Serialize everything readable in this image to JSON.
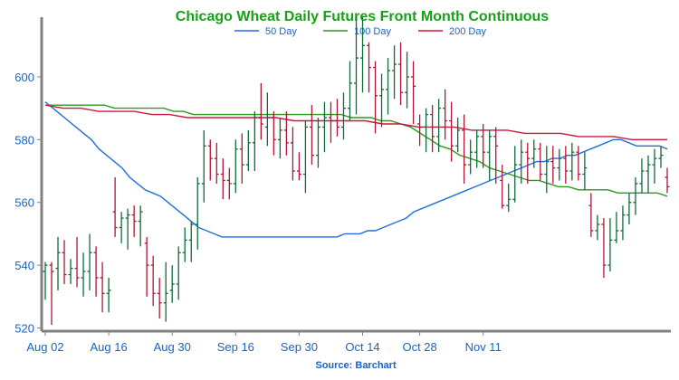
{
  "chart_data": {
    "type": "ohlc",
    "title": "Chicago Wheat Daily Futures Front Month Continuous",
    "source": "Source: Barchart",
    "x_ticks": [
      "Aug 02",
      "Aug 16",
      "Aug 30",
      "Sep 16",
      "Sep 30",
      "Oct 14",
      "Oct 28",
      "Nov 11"
    ],
    "y_ticks": [
      520,
      540,
      560,
      580,
      600
    ],
    "ylim": [
      519,
      619
    ],
    "grid": false,
    "legend_position": "top-center",
    "legend": [
      {
        "name": "50 Day",
        "color": "#1f6fe0"
      },
      {
        "name": "100 Day",
        "color": "#2a9a1c"
      },
      {
        "name": "200 Day",
        "color": "#c8193c"
      }
    ],
    "colors": {
      "up": "#0f6b3a",
      "down": "#b01535",
      "axis": "#808080",
      "tick": "#1a63c7",
      "title": "#19a019",
      "source": "#1a63c7"
    },
    "candles": [
      [
        538,
        541,
        529,
        540
      ],
      [
        540,
        541,
        521,
        538
      ],
      [
        539,
        549,
        532,
        544
      ],
      [
        544,
        548,
        534,
        537
      ],
      [
        537,
        542,
        534,
        539
      ],
      [
        539,
        549,
        533,
        536
      ],
      [
        536,
        544,
        530,
        538
      ],
      [
        538,
        550,
        532,
        544
      ],
      [
        544,
        546,
        530,
        536
      ],
      [
        536,
        541,
        525,
        531
      ],
      [
        531,
        536,
        525,
        532
      ],
      [
        557,
        568,
        549,
        552
      ],
      [
        552,
        557,
        547,
        555
      ],
      [
        555,
        558,
        545,
        556
      ],
      [
        556,
        559,
        549,
        554
      ],
      [
        554,
        559,
        546,
        557
      ],
      [
        547,
        549,
        530,
        540
      ],
      [
        540,
        543,
        527,
        531
      ],
      [
        531,
        536,
        523,
        528
      ],
      [
        528,
        541,
        522,
        531
      ],
      [
        532,
        540,
        528,
        534
      ],
      [
        534,
        546,
        529,
        544
      ],
      [
        544,
        552,
        541,
        548
      ],
      [
        548,
        554,
        541,
        553
      ],
      [
        553,
        568,
        545,
        566
      ],
      [
        566,
        583,
        560,
        578
      ],
      [
        578,
        580,
        567,
        574
      ],
      [
        574,
        579,
        566,
        569
      ],
      [
        569,
        574,
        561,
        567
      ],
      [
        567,
        571,
        561,
        566
      ],
      [
        566,
        580,
        563,
        577
      ],
      [
        577,
        582,
        566,
        572
      ],
      [
        572,
        583,
        570,
        579
      ],
      [
        579,
        589,
        570,
        587
      ],
      [
        587,
        598,
        580,
        585
      ],
      [
        584,
        595,
        578,
        587
      ],
      [
        587,
        589,
        575,
        580
      ],
      [
        580,
        587,
        574,
        583
      ],
      [
        583,
        589,
        575,
        579
      ],
      [
        579,
        584,
        567,
        570
      ],
      [
        570,
        576,
        567,
        569
      ],
      [
        569,
        586,
        563,
        584
      ],
      [
        584,
        591,
        572,
        575
      ],
      [
        575,
        587,
        571,
        584
      ],
      [
        584,
        592,
        576,
        587
      ],
      [
        587,
        592,
        579,
        586
      ],
      [
        586,
        593,
        581,
        584
      ],
      [
        584,
        595,
        580,
        590
      ],
      [
        590,
        605,
        586,
        598
      ],
      [
        598,
        619,
        588,
        606
      ],
      [
        606,
        619,
        595,
        610
      ],
      [
        610,
        611,
        595,
        603
      ],
      [
        603,
        605,
        582,
        594
      ],
      [
        594,
        601,
        584,
        596
      ],
      [
        596,
        606,
        588,
        602
      ],
      [
        602,
        610,
        593,
        604
      ],
      [
        604,
        611,
        591,
        595
      ],
      [
        595,
        608,
        590,
        600
      ],
      [
        600,
        605,
        585,
        597
      ],
      [
        585,
        588,
        578,
        584
      ],
      [
        584,
        590,
        576,
        588
      ],
      [
        588,
        591,
        576,
        581
      ],
      [
        581,
        593,
        576,
        590
      ],
      [
        590,
        596,
        580,
        586
      ],
      [
        586,
        592,
        573,
        578
      ],
      [
        578,
        587,
        576,
        583
      ],
      [
        583,
        588,
        566,
        572
      ],
      [
        572,
        580,
        569,
        576
      ],
      [
        576,
        583,
        571,
        581
      ],
      [
        581,
        585,
        571,
        576
      ],
      [
        576,
        583,
        567,
        581
      ],
      [
        581,
        584,
        566,
        578
      ],
      [
        567,
        572,
        558,
        559
      ],
      [
        559,
        566,
        557,
        561
      ],
      [
        561,
        578,
        560,
        572
      ],
      [
        572,
        580,
        566,
        576
      ],
      [
        576,
        579,
        566,
        574
      ],
      [
        574,
        580,
        571,
        577
      ],
      [
        577,
        579,
        567,
        569
      ],
      [
        569,
        578,
        563,
        573
      ],
      [
        573,
        578,
        566,
        571
      ],
      [
        571,
        577,
        567,
        574
      ],
      [
        574,
        578,
        566,
        570
      ],
      [
        570,
        579,
        567,
        576
      ],
      [
        576,
        578,
        567,
        569
      ],
      [
        569,
        576,
        564,
        571
      ],
      [
        559,
        563,
        549,
        551
      ],
      [
        551,
        556,
        548,
        553
      ],
      [
        553,
        555,
        536,
        540
      ],
      [
        540,
        555,
        538,
        548
      ],
      [
        548,
        557,
        547,
        551
      ],
      [
        551,
        559,
        548,
        556
      ],
      [
        556,
        563,
        553,
        560
      ],
      [
        560,
        568,
        556,
        566
      ],
      [
        566,
        574,
        563,
        570
      ],
      [
        570,
        575,
        563,
        572
      ],
      [
        572,
        577,
        566,
        574
      ],
      [
        574,
        578,
        571,
        575
      ],
      [
        568,
        571,
        563,
        565
      ]
    ],
    "ma50": [
      592,
      590,
      588,
      586,
      584,
      582,
      580,
      577,
      575,
      573,
      571,
      568,
      566,
      564,
      563,
      562,
      560,
      558,
      556,
      554,
      552,
      551,
      550,
      549,
      549,
      549,
      549,
      549,
      549,
      549,
      549,
      549,
      549,
      549,
      549,
      549,
      549,
      549,
      549,
      550,
      550,
      550,
      551,
      551,
      552,
      553,
      554,
      555,
      557,
      558,
      559,
      560,
      561,
      562,
      563,
      564,
      565,
      566,
      567,
      568,
      569,
      570,
      571,
      572,
      573,
      573,
      574,
      574,
      575,
      575,
      576,
      577,
      578,
      579,
      580,
      580,
      579,
      578,
      578,
      578,
      578,
      577
    ],
    "ma100": [
      591,
      591,
      591,
      591,
      591,
      591,
      591,
      590,
      590,
      590,
      590,
      590,
      590,
      589,
      589,
      588,
      588,
      588,
      588,
      588,
      588,
      588,
      588,
      588,
      588,
      588,
      588,
      588,
      588,
      588,
      588,
      587,
      587,
      587,
      586,
      586,
      585,
      584,
      582,
      580,
      578,
      577,
      575,
      574,
      573,
      571,
      570,
      569,
      568,
      567,
      567,
      566,
      565,
      565,
      564,
      564,
      564,
      564,
      563,
      563,
      563,
      563,
      563,
      562
    ],
    "ma200": [
      591,
      590,
      590,
      589,
      589,
      589,
      588,
      588,
      587,
      587,
      587,
      587,
      587,
      587,
      586,
      586,
      586,
      586,
      586,
      585,
      585,
      584,
      584,
      584,
      583,
      583,
      583,
      582,
      582,
      582,
      581,
      581,
      581,
      580,
      580,
      580
    ]
  }
}
